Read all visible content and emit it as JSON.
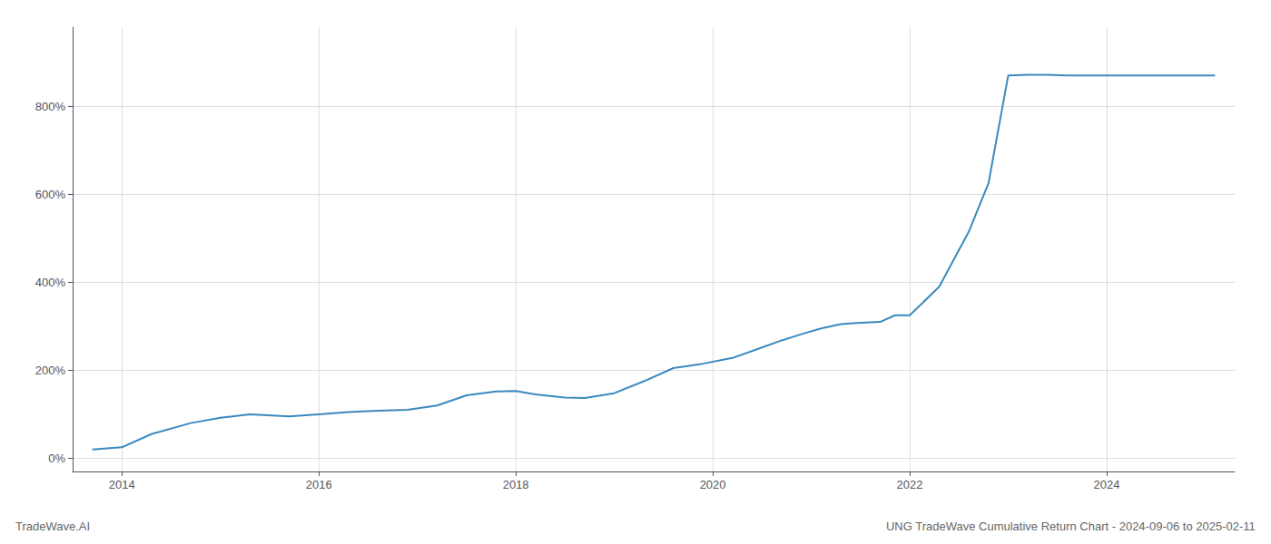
{
  "chart_data": {
    "type": "line",
    "title": "UNG TradeWave Cumulative Return Chart - 2024-09-06 to 2025-02-11",
    "annotations": [
      "TradeWave.AI"
    ],
    "x": [
      2013.7,
      2014.0,
      2014.3,
      2014.7,
      2015.0,
      2015.3,
      2015.7,
      2016.0,
      2016.3,
      2016.6,
      2016.9,
      2017.2,
      2017.5,
      2017.8,
      2018.0,
      2018.2,
      2018.5,
      2018.7,
      2019.0,
      2019.3,
      2019.6,
      2019.9,
      2020.2,
      2020.5,
      2020.7,
      2020.9,
      2021.1,
      2021.3,
      2021.5,
      2021.7,
      2021.85,
      2022.0,
      2022.3,
      2022.6,
      2022.8,
      2023.0,
      2023.2,
      2023.4,
      2023.6,
      2023.8,
      2024.0,
      2024.3,
      2024.6,
      2024.9,
      2025.1
    ],
    "values": [
      20,
      25,
      55,
      80,
      92,
      100,
      95,
      100,
      105,
      108,
      110,
      120,
      143,
      152,
      153,
      145,
      138,
      137,
      148,
      175,
      205,
      215,
      228,
      252,
      268,
      282,
      295,
      305,
      308,
      310,
      325,
      325,
      390,
      515,
      625,
      870,
      872,
      872,
      870,
      870,
      870,
      870,
      870,
      870,
      870
    ],
    "color": "#3a8abf",
    "xlim": [
      2013.5,
      2025.3
    ],
    "xticks": [
      2014,
      2016,
      2018,
      2020,
      2022,
      2024
    ],
    "ylim": [
      -30,
      980
    ],
    "yticks": [
      {
        "value": 0,
        "label": "0%"
      },
      {
        "value": 200,
        "label": "200%"
      },
      {
        "value": 400,
        "label": "400%"
      },
      {
        "value": 600,
        "label": "600%"
      },
      {
        "value": 800,
        "label": "800%"
      }
    ],
    "grid": true
  }
}
